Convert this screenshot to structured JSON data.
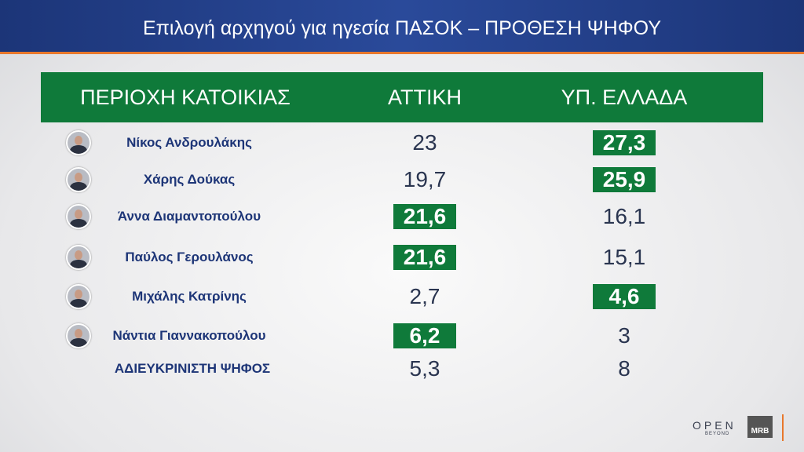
{
  "header": {
    "title": "Επιλογή αρχηγού για ηγεσία ΠΑΣΟΚ – ΠΡΟΘΕΣΗ ΨΗΦΟΥ"
  },
  "table": {
    "columns": [
      "ΠΕΡΙΟΧΗ ΚΑΤΟΙΚΙΑΣ",
      "ΑΤΤΙΚΗ",
      "ΥΠ. ΕΛΛΑΔΑ"
    ],
    "rows": [
      {
        "name": "Νίκος Ανδρουλάκης",
        "photo": true,
        "cells": [
          {
            "text": "23",
            "highlight": false
          },
          {
            "text": "27,3",
            "highlight": true
          }
        ]
      },
      {
        "name": "Χάρης Δούκας",
        "photo": true,
        "cells": [
          {
            "text": "19,7",
            "highlight": false
          },
          {
            "text": "25,9",
            "highlight": true
          }
        ]
      },
      {
        "name": "Άννα Διαμαντοπούλου",
        "photo": true,
        "cells": [
          {
            "text": "21,6",
            "highlight": true
          },
          {
            "text": "16,1",
            "highlight": false
          }
        ]
      },
      {
        "name": "Παύλος Γερουλάνος",
        "photo": true,
        "cells": [
          {
            "text": "21,6",
            "highlight": true
          },
          {
            "text": "15,1",
            "highlight": false
          }
        ]
      },
      {
        "name": "Μιχάλης Κατρίνης",
        "photo": true,
        "cells": [
          {
            "text": "2,7",
            "highlight": false
          },
          {
            "text": "4,6",
            "highlight": true
          }
        ]
      },
      {
        "name": "Νάντια Γιαννακοπούλου",
        "photo": true,
        "cells": [
          {
            "text": "6,2",
            "highlight": true
          },
          {
            "text": "3",
            "highlight": false
          }
        ]
      },
      {
        "name": "ΑΔΙΕΥΚΡΙΝΙΣΤΗ ΨΗΦΟΣ",
        "photo": false,
        "cells": [
          {
            "text": "5,3",
            "highlight": false
          },
          {
            "text": "8",
            "highlight": false
          }
        ]
      }
    ]
  },
  "logos": {
    "open": "OPEN",
    "beyond": "BEYOND",
    "mrb": "MRB"
  }
}
